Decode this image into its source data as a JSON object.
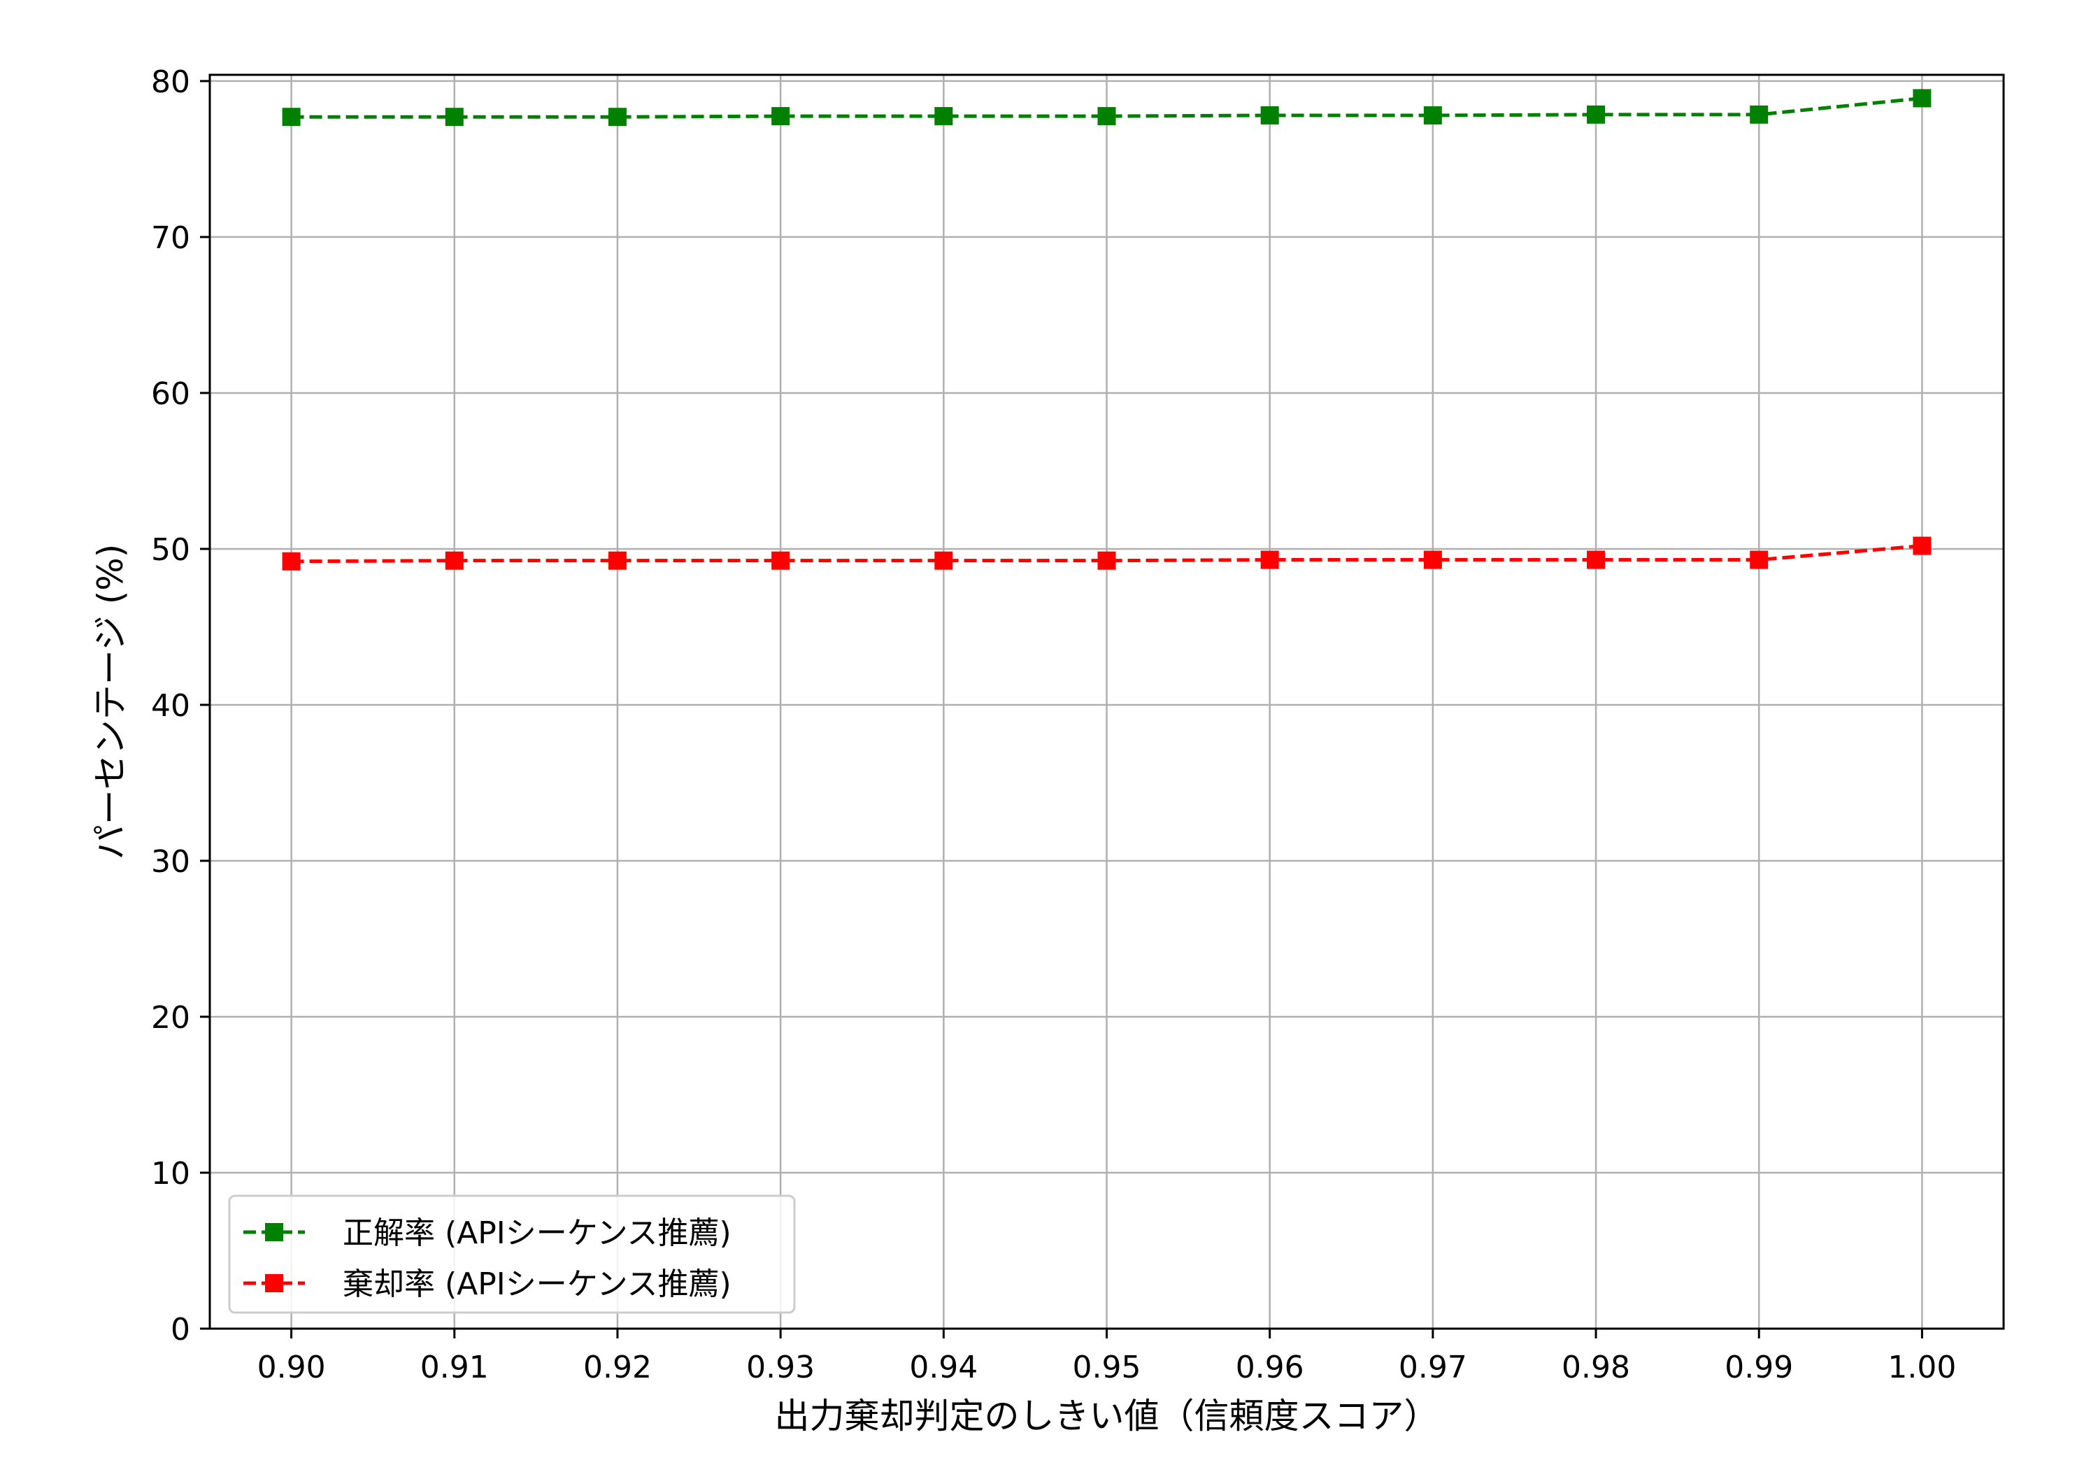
{
  "chart_data": {
    "type": "line",
    "title": "",
    "xlabel": "出力棄却判定のしきい値（信頼度スコア）",
    "ylabel": "パーセンテージ (%)",
    "x": [
      0.9,
      0.91,
      0.92,
      0.93,
      0.94,
      0.95,
      0.96,
      0.97,
      0.98,
      0.99,
      1.0
    ],
    "x_tick_labels": [
      "0.90",
      "0.91",
      "0.92",
      "0.93",
      "0.94",
      "0.95",
      "0.96",
      "0.97",
      "0.98",
      "0.99",
      "1.00"
    ],
    "xlim": [
      0.895,
      1.005
    ],
    "ylim": [
      0,
      80.4
    ],
    "y_ticks": [
      0,
      10,
      20,
      30,
      40,
      50,
      60,
      70,
      80
    ],
    "y_tick_labels": [
      "0",
      "10",
      "20",
      "30",
      "40",
      "50",
      "60",
      "70",
      "80"
    ],
    "grid": true,
    "legend_position": "lower-left",
    "series": [
      {
        "name": "正解率 (APIシーケンス推薦)",
        "color": "#008000",
        "line_style": "dashed",
        "marker": "square",
        "values": [
          77.7,
          77.7,
          77.7,
          77.75,
          77.75,
          77.75,
          77.8,
          77.8,
          77.85,
          77.85,
          78.9
        ]
      },
      {
        "name": "棄却率 (APIシーケンス推薦)",
        "color": "#ff0000",
        "line_style": "dashed",
        "marker": "square",
        "values": [
          49.2,
          49.25,
          49.25,
          49.25,
          49.25,
          49.25,
          49.3,
          49.3,
          49.3,
          49.3,
          50.2
        ]
      }
    ]
  }
}
